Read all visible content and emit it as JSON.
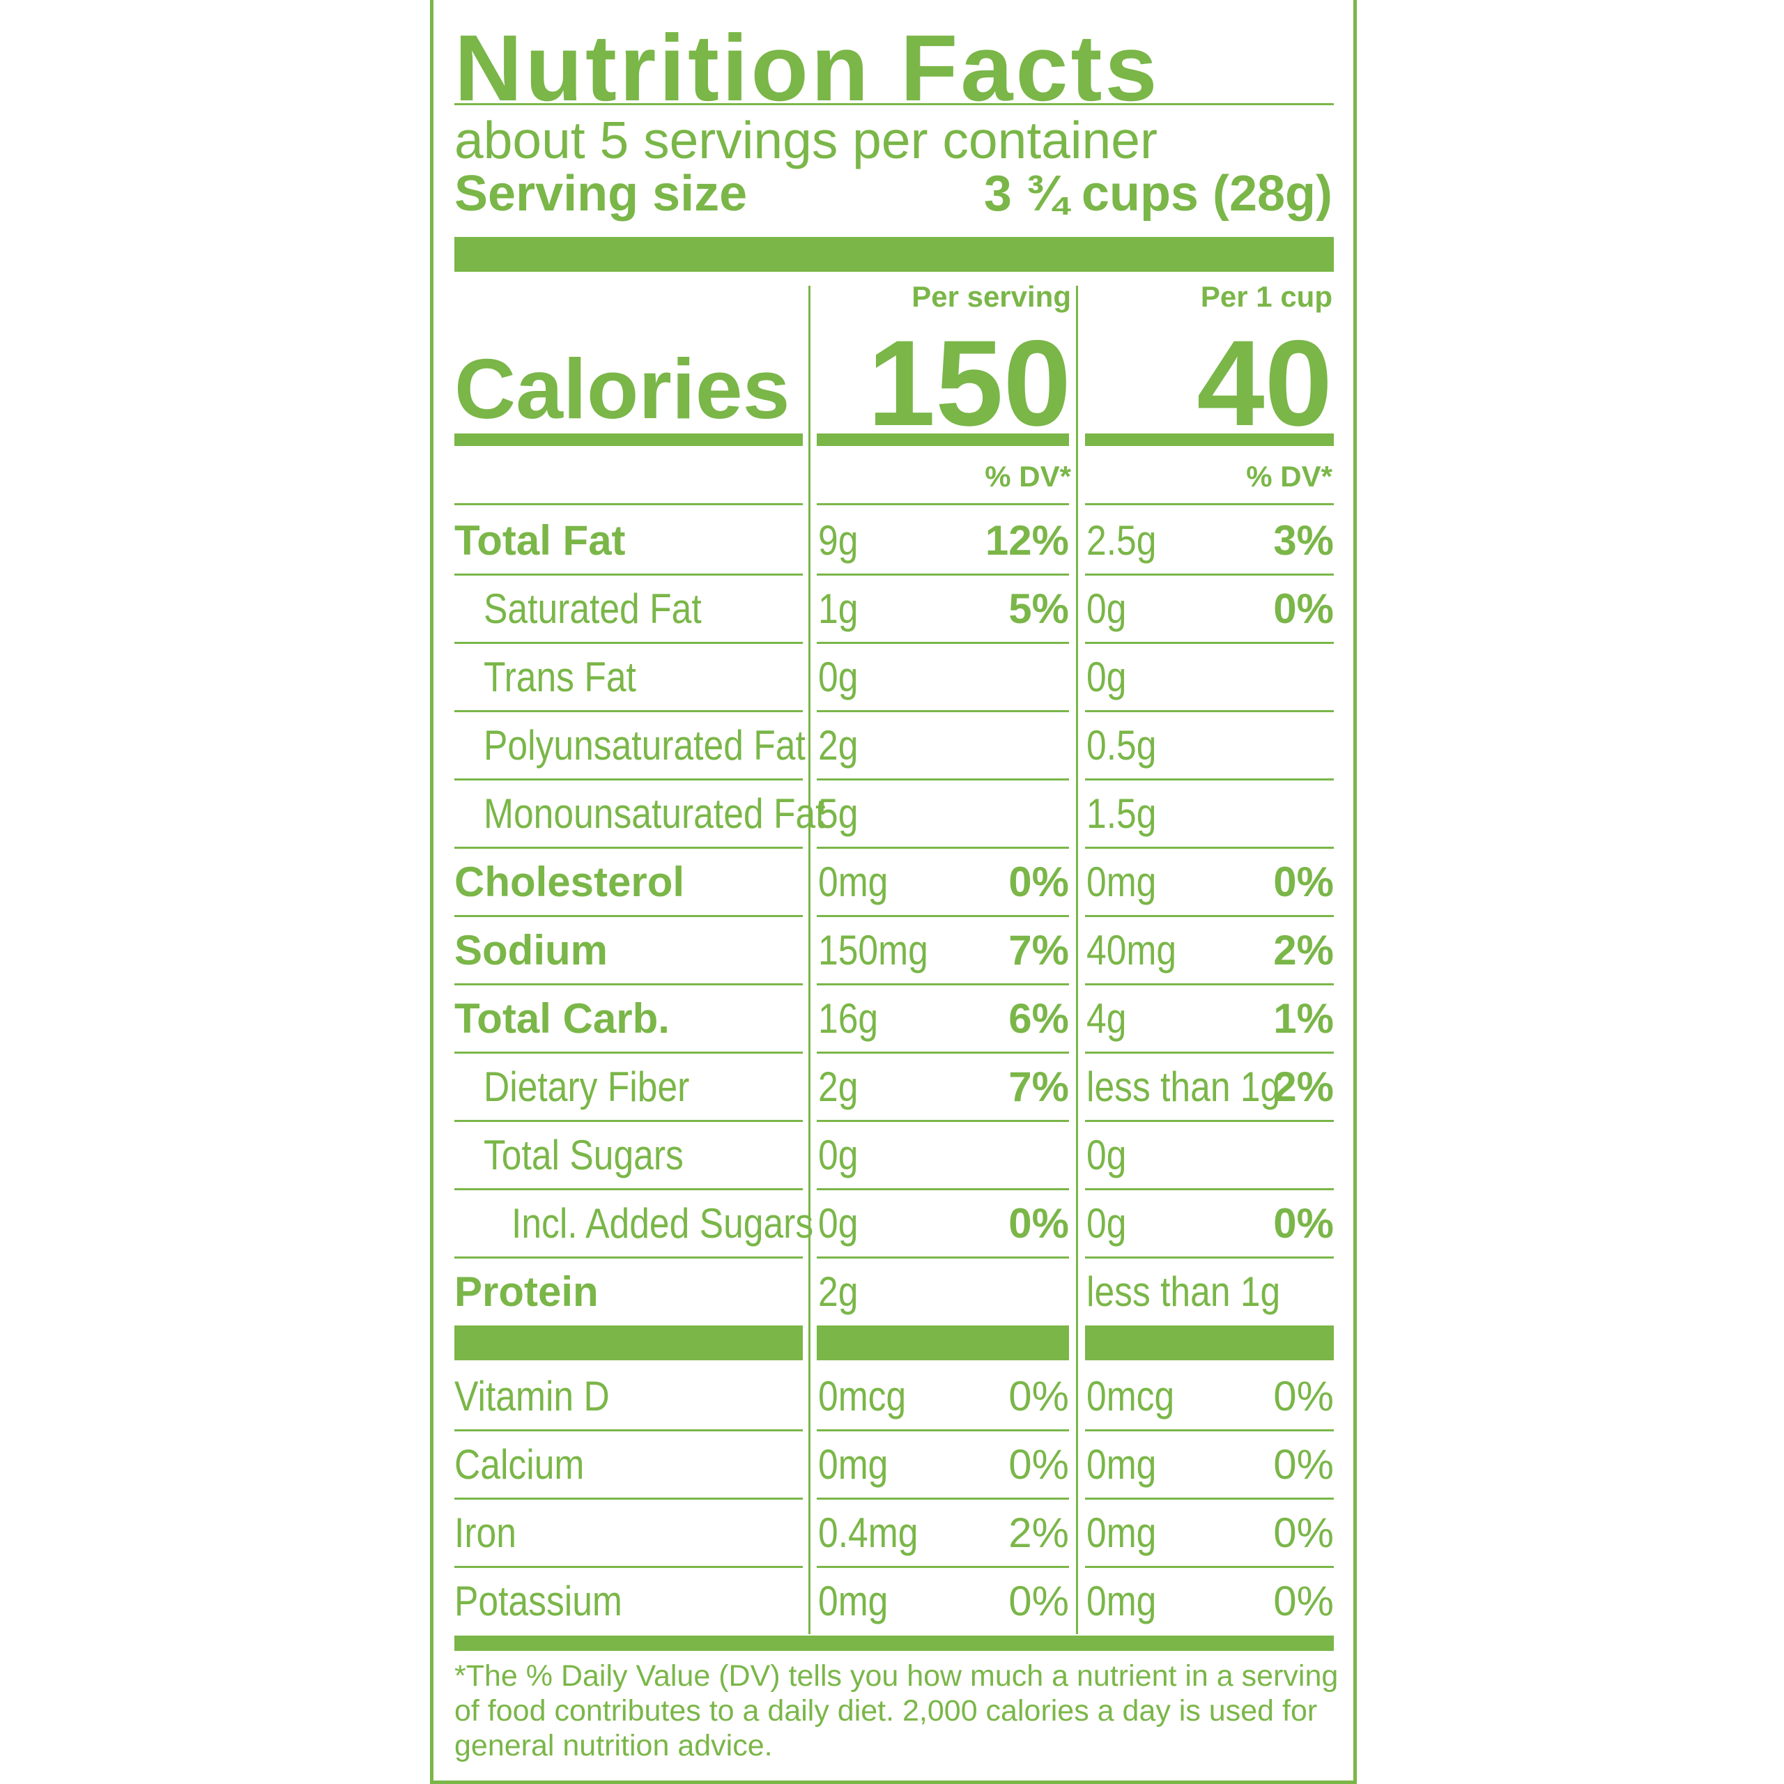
{
  "label": {
    "title": "Nutrition Facts",
    "servings_per_container": "about 5 servings per container",
    "serving_size_label": "Serving size",
    "serving_size_value": "3 ¾ cups (28g)",
    "column_1_header": "Per serving",
    "column_2_header": "Per 1 cup",
    "calories_label": "Calories",
    "calories_per_serving": "150",
    "calories_per_cup": "40",
    "dv_header": "% DV*",
    "nutrients": [
      {
        "name": "Total Fat",
        "amount1": "9g",
        "dv1": "12%",
        "amount2": "2.5g",
        "dv2": "3%"
      },
      {
        "name": "Saturated Fat",
        "amount1": "1g",
        "dv1": "5%",
        "amount2": "0g",
        "dv2": "0%"
      },
      {
        "name": "Trans Fat",
        "amount1": "0g",
        "dv1": "",
        "amount2": "0g",
        "dv2": ""
      },
      {
        "name": "Polyunsaturated Fat",
        "amount1": "2g",
        "dv1": "",
        "amount2": "0.5g",
        "dv2": ""
      },
      {
        "name": "Monounsaturated Fat",
        "amount1": "5g",
        "dv1": "",
        "amount2": "1.5g",
        "dv2": ""
      },
      {
        "name": "Cholesterol",
        "amount1": "0mg",
        "dv1": "0%",
        "amount2": "0mg",
        "dv2": "0%"
      },
      {
        "name": "Sodium",
        "amount1": "150mg",
        "dv1": "7%",
        "amount2": "40mg",
        "dv2": "2%"
      },
      {
        "name": "Total Carb.",
        "amount1": "16g",
        "dv1": "6%",
        "amount2": "4g",
        "dv2": "1%"
      },
      {
        "name": "Dietary Fiber",
        "amount1": "2g",
        "dv1": "7%",
        "amount2": "less than 1g",
        "dv2": "2%"
      },
      {
        "name": "Total Sugars",
        "amount1": "0g",
        "dv1": "",
        "amount2": "0g",
        "dv2": ""
      },
      {
        "name": "Incl. Added Sugars",
        "amount1": "0g",
        "dv1": "0%",
        "amount2": "0g",
        "dv2": "0%"
      },
      {
        "name": "Protein",
        "amount1": "2g",
        "dv1": "",
        "amount2": "less than 1g",
        "dv2": ""
      }
    ],
    "vitamins": [
      {
        "name": "Vitamin D",
        "amount1": "0mcg",
        "dv1": "0%",
        "amount2": "0mcg",
        "dv2": "0%"
      },
      {
        "name": "Calcium",
        "amount1": "0mg",
        "dv1": "0%",
        "amount2": "0mg",
        "dv2": "0%"
      },
      {
        "name": "Iron",
        "amount1": "0.4mg",
        "dv1": "2%",
        "amount2": "0mg",
        "dv2": "0%"
      },
      {
        "name": "Potassium",
        "amount1": "0mg",
        "dv1": "0%",
        "amount2": "0mg",
        "dv2": "0%"
      }
    ],
    "footnote": "*The % Daily Value (DV) tells you how much a nutrient in a serving of food contributes to a daily diet. 2,000 calories a day is used for general nutrition advice."
  },
  "colors": {
    "label_green": "#7ab648",
    "background": "#ffffff"
  }
}
